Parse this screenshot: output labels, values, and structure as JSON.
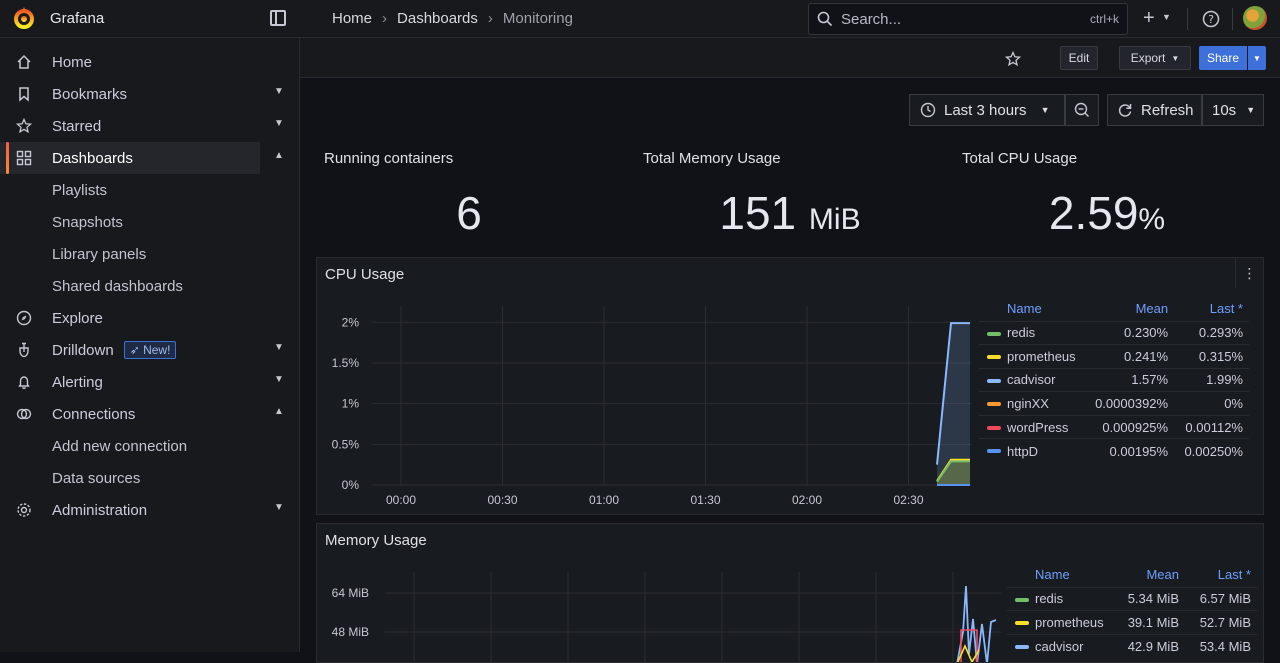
{
  "app": {
    "name": "Grafana"
  },
  "breadcrumbs": [
    {
      "label": "Home"
    },
    {
      "label": "Dashboards"
    },
    {
      "label": "Monitoring"
    }
  ],
  "search": {
    "placeholder": "Search...",
    "shortcut": "ctrl+k"
  },
  "topbar_icons": [
    "plus-icon",
    "help-icon",
    "avatar"
  ],
  "sidebar": {
    "items": [
      {
        "label": "Home",
        "icon": "home-icon"
      },
      {
        "label": "Bookmarks",
        "icon": "bookmark-icon"
      },
      {
        "label": "Starred",
        "icon": "star-icon"
      },
      {
        "label": "Dashboards",
        "icon": "dashboards-icon",
        "active": true
      },
      {
        "label": "Playlists"
      },
      {
        "label": "Snapshots"
      },
      {
        "label": "Library panels"
      },
      {
        "label": "Shared dashboards"
      },
      {
        "label": "Explore",
        "icon": "compass-icon"
      },
      {
        "label": "Drilldown",
        "icon": "drilldown-icon",
        "badge": "New!"
      },
      {
        "label": "Alerting",
        "icon": "bell-icon"
      },
      {
        "label": "Connections",
        "icon": "connections-icon"
      },
      {
        "label": "Add new connection"
      },
      {
        "label": "Data sources"
      },
      {
        "label": "Administration",
        "icon": "gear-icon"
      }
    ]
  },
  "toolbar": {
    "edit": "Edit",
    "export": "Export",
    "share": "Share"
  },
  "time": {
    "range": "Last 3 hours",
    "refresh": "Refresh",
    "interval": "10s"
  },
  "stats": [
    {
      "title": "Running containers",
      "value": "6",
      "unit": ""
    },
    {
      "title": "Total Memory Usage",
      "value": "151",
      "unit": "MiB"
    },
    {
      "title": "Total CPU Usage",
      "value": "2.59",
      "unit": "%"
    }
  ],
  "colors": {
    "accent": "#3d71d9",
    "green": "#73bf69",
    "yellow": "#fade2a",
    "lightblue": "#8ab8ff",
    "orange": "#ff9830",
    "red": "#f2495c",
    "blue": "#5794f2"
  },
  "chart_data": [
    {
      "type": "line",
      "title": "CPU Usage",
      "x_ticks": [
        "00:00",
        "00:30",
        "01:00",
        "01:30",
        "02:00",
        "02:30"
      ],
      "y_ticks": [
        "0%",
        "0.5%",
        "1%",
        "1.5%",
        "2%"
      ],
      "ylim": [
        0,
        2.2
      ],
      "legend_headers": [
        "Name",
        "Mean",
        "Last *"
      ],
      "series": [
        {
          "name": "redis",
          "mean": "0.230%",
          "last": "0.293%",
          "color": "#73bf69"
        },
        {
          "name": "prometheus",
          "mean": "0.241%",
          "last": "0.315%",
          "color": "#fade2a"
        },
        {
          "name": "cadvisor",
          "mean": "1.57%",
          "last": "1.99%",
          "color": "#8ab8ff"
        },
        {
          "name": "nginXX",
          "mean": "0.0000392%",
          "last": "0%",
          "color": "#ff9830"
        },
        {
          "name": "wordPress",
          "mean": "0.000925%",
          "last": "0.00112%",
          "color": "#f2495c"
        },
        {
          "name": "httpD",
          "mean": "0.00195%",
          "last": "0.00250%",
          "color": "#5794f2"
        }
      ]
    },
    {
      "type": "line",
      "title": "Memory Usage",
      "y_ticks": [
        "64 MiB",
        "48 MiB"
      ],
      "legend_headers": [
        "Name",
        "Mean",
        "Last *"
      ],
      "series": [
        {
          "name": "redis",
          "mean": "5.34 MiB",
          "last": "6.57 MiB",
          "color": "#73bf69"
        },
        {
          "name": "prometheus",
          "mean": "39.1 MiB",
          "last": "52.7 MiB",
          "color": "#fade2a"
        },
        {
          "name": "cadvisor",
          "mean": "42.9 MiB",
          "last": "53.4 MiB",
          "color": "#8ab8ff"
        }
      ]
    }
  ]
}
